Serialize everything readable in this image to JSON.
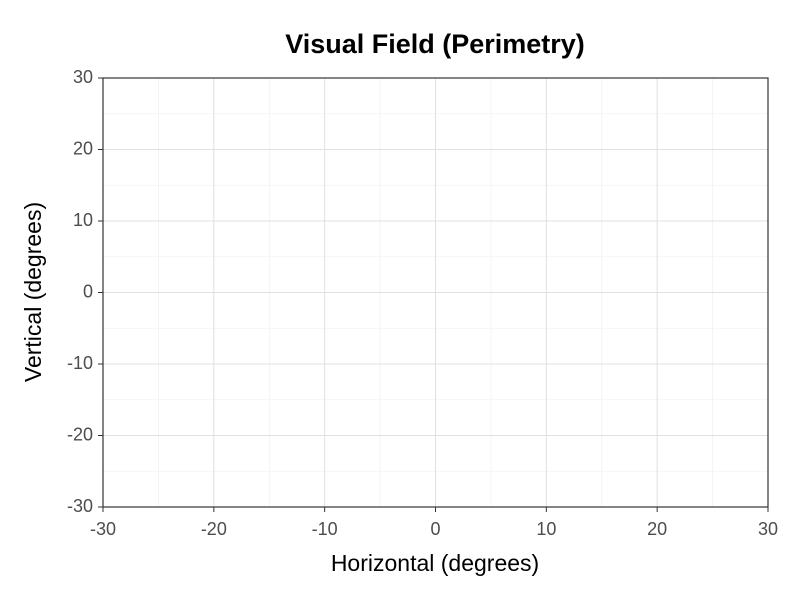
{
  "chart_data": {
    "type": "scatter",
    "title": "Visual Field (Perimetry)",
    "x_label": "Horizontal (degrees)",
    "y_label": "Vertical (degrees)",
    "x": [],
    "values": [],
    "xlim": [
      -30,
      30
    ],
    "ylim": [
      -30,
      30
    ],
    "xticks": [
      -30,
      -20,
      -10,
      0,
      10,
      20,
      30
    ],
    "yticks": [
      -30,
      -20,
      -10,
      0,
      10,
      20,
      30
    ],
    "grid": true,
    "minor_grid": true,
    "color": "#000000"
  }
}
